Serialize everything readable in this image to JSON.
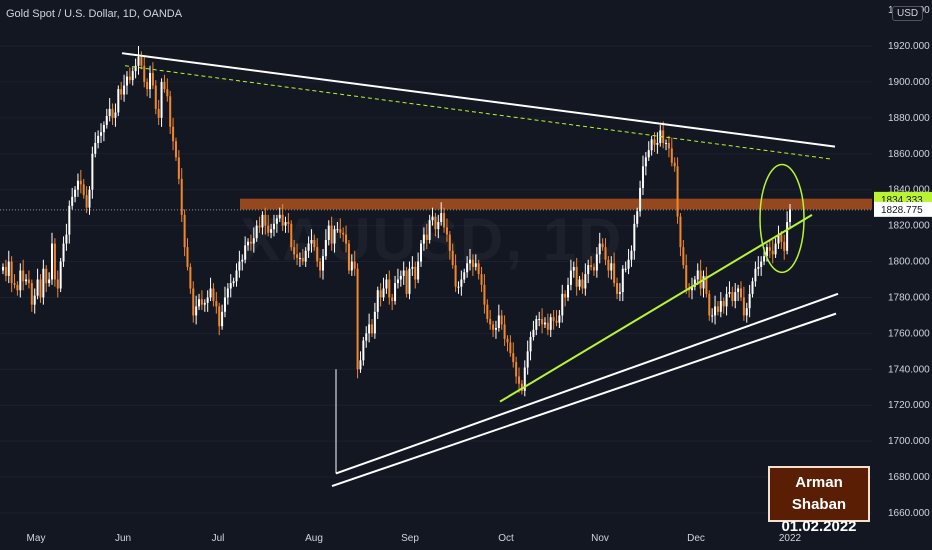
{
  "header": {
    "symbol_title": "Gold Spot / U.S. Dollar, 1D, OANDA",
    "currency": "USD"
  },
  "signature": {
    "name": "Arman Shaban",
    "date": "01.02.2022"
  },
  "colors": {
    "background": "#131722",
    "candle_up": "#ffffff",
    "candle_down": "#f2862b",
    "resistance_zone": "#c25a1c",
    "support_line": "#b8f530",
    "trend_lines": "#ffffff",
    "dashed_line": "#b8f530",
    "price_tag_highlight": "#b8f530"
  },
  "chart_data": {
    "type": "candlestick",
    "ylim": [
      1660,
      1940
    ],
    "y_ticks": [
      "1660.000",
      "1680.000",
      "1700.000",
      "1720.000",
      "1740.000",
      "1760.000",
      "1780.000",
      "1800.000",
      "1820.000",
      "1840.000",
      "1860.000",
      "1880.000",
      "1900.000",
      "1920.000"
    ],
    "y_top_label": "1940.000",
    "x_labels": [
      "May",
      "Jun",
      "Jul",
      "Aug",
      "Sep",
      "Oct",
      "Nov",
      "Dec",
      "2022"
    ],
    "current_price": "1828.775",
    "highlighted_price": "1834.333",
    "resistance_zone": [
      1829,
      1835
    ],
    "key_levels": {
      "high_may_jun": 1916,
      "nov_high": 1877,
      "aug_low": 1682,
      "sep_low": 1721
    },
    "candles_close": [
      1797,
      1792,
      1800,
      1788,
      1787,
      1784,
      1795,
      1789,
      1790,
      1788,
      1776,
      1781,
      1790,
      1780,
      1796,
      1788,
      1790,
      1810,
      1790,
      1785,
      1800,
      1810,
      1815,
      1831,
      1836,
      1840,
      1845,
      1843,
      1837,
      1830,
      1840,
      1860,
      1866,
      1870,
      1872,
      1876,
      1881,
      1885,
      1880,
      1883,
      1896,
      1893,
      1898,
      1903,
      1901,
      1906,
      1909,
      1914,
      1909,
      1900,
      1896,
      1905,
      1898,
      1885,
      1880,
      1900,
      1896,
      1892,
      1875,
      1867,
      1858,
      1846,
      1826,
      1808,
      1797,
      1785,
      1770,
      1775,
      1779,
      1776,
      1777,
      1780,
      1785,
      1778,
      1775,
      1764,
      1772,
      1780,
      1785,
      1788,
      1789,
      1795,
      1800,
      1801,
      1809,
      1811,
      1810,
      1813,
      1820,
      1819,
      1826,
      1820,
      1816,
      1818,
      1821,
      1824,
      1826,
      1820,
      1822,
      1821,
      1808,
      1804,
      1802,
      1802,
      1800,
      1806,
      1810,
      1812,
      1808,
      1800,
      1795,
      1803,
      1812,
      1820,
      1810,
      1818,
      1818,
      1816,
      1815,
      1810,
      1795,
      1800,
      1796,
      1740,
      1745,
      1756,
      1760,
      1765,
      1760,
      1772,
      1784,
      1780,
      1785,
      1790,
      1780,
      1778,
      1788,
      1790,
      1792,
      1795,
      1782,
      1796,
      1797,
      1790,
      1800,
      1810,
      1815,
      1812,
      1823,
      1825,
      1818,
      1822,
      1827,
      1819,
      1815,
      1806,
      1798,
      1786,
      1786,
      1790,
      1794,
      1799,
      1801,
      1797,
      1799,
      1793,
      1787,
      1776,
      1768,
      1765,
      1762,
      1763,
      1770,
      1765,
      1757,
      1755,
      1749,
      1744,
      1736,
      1732,
      1728,
      1741,
      1750,
      1758,
      1762,
      1768,
      1768,
      1765,
      1766,
      1762,
      1769,
      1767,
      1766,
      1770,
      1782,
      1780,
      1787,
      1795,
      1797,
      1786,
      1790,
      1785,
      1793,
      1798,
      1797,
      1795,
      1804,
      1810,
      1808,
      1801,
      1795,
      1799,
      1788,
      1782,
      1783,
      1796,
      1796,
      1801,
      1806,
      1821,
      1828,
      1841,
      1853,
      1858,
      1862,
      1868,
      1865,
      1866,
      1873,
      1866,
      1866,
      1863,
      1855,
      1853,
      1825,
      1808,
      1798,
      1785,
      1784,
      1786,
      1790,
      1795,
      1785,
      1792,
      1782,
      1770,
      1770,
      1775,
      1772,
      1778,
      1775,
      1782,
      1783,
      1778,
      1783,
      1785,
      1780,
      1770,
      1774,
      1782,
      1789,
      1796,
      1797,
      1800,
      1803,
      1808,
      1806,
      1804,
      1810,
      1815,
      1811,
      1806,
      1822,
      1829
    ]
  }
}
